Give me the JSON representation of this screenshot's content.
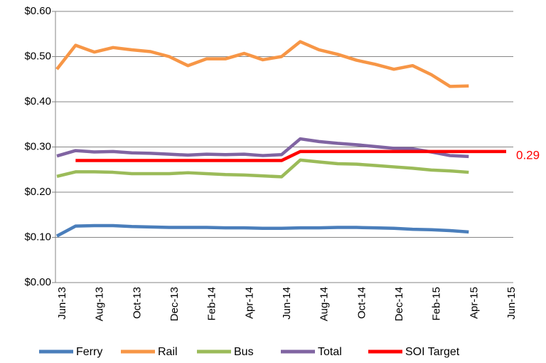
{
  "chart_data": {
    "type": "line",
    "categories": [
      "Jun-13",
      null,
      "Aug-13",
      null,
      "Oct-13",
      null,
      "Dec-13",
      null,
      "Feb-14",
      null,
      "Apr-14",
      null,
      "Jun-14",
      null,
      "Aug-14",
      null,
      "Oct-14",
      null,
      "Dec-14",
      null,
      "Feb-15",
      null,
      "Apr-15",
      null,
      "Jun-15"
    ],
    "series": [
      {
        "name": "Ferry",
        "color": "#4a7ebb",
        "values": [
          0.103,
          0.125,
          0.126,
          0.126,
          0.124,
          0.123,
          0.122,
          0.122,
          0.122,
          0.121,
          0.121,
          0.12,
          0.12,
          0.121,
          0.121,
          0.122,
          0.122,
          0.121,
          0.12,
          0.118,
          0.117,
          0.115,
          0.112,
          null,
          null
        ]
      },
      {
        "name": "Rail",
        "color": "#f79646",
        "values": [
          0.472,
          0.525,
          0.51,
          0.52,
          0.515,
          0.511,
          0.5,
          0.48,
          0.495,
          0.495,
          0.507,
          0.493,
          0.5,
          0.533,
          0.515,
          0.505,
          0.492,
          0.483,
          0.472,
          0.48,
          0.46,
          0.434,
          0.435,
          null,
          null
        ]
      },
      {
        "name": "Bus",
        "color": "#9bbb59",
        "values": [
          0.235,
          0.245,
          0.245,
          0.244,
          0.241,
          0.241,
          0.241,
          0.243,
          0.241,
          0.239,
          0.238,
          0.236,
          0.234,
          0.271,
          0.267,
          0.263,
          0.262,
          0.259,
          0.256,
          0.253,
          0.249,
          0.247,
          0.244,
          null,
          null
        ]
      },
      {
        "name": "Total",
        "color": "#8064a2",
        "values": [
          0.28,
          0.292,
          0.289,
          0.29,
          0.287,
          0.286,
          0.284,
          0.282,
          0.284,
          0.283,
          0.284,
          0.281,
          0.283,
          0.318,
          0.312,
          0.308,
          0.305,
          0.301,
          0.297,
          0.296,
          0.289,
          0.281,
          0.279,
          null,
          null
        ]
      },
      {
        "name": "SOI Target",
        "color": "#ff0000",
        "values": [
          null,
          0.27,
          0.27,
          0.27,
          0.27,
          0.27,
          0.27,
          0.27,
          0.27,
          0.27,
          0.27,
          0.27,
          0.27,
          0.29,
          0.29,
          0.29,
          0.29,
          0.29,
          0.29,
          0.29,
          0.29,
          0.29,
          0.29,
          0.29,
          0.29
        ]
      }
    ],
    "annotations": [
      {
        "text": "0.29",
        "color": "#ff0000"
      }
    ],
    "ylim": [
      0,
      0.6
    ],
    "yticks": [
      {
        "value": 0,
        "label": "$0.00"
      },
      {
        "value": 0.1,
        "label": "$0.10"
      },
      {
        "value": 0.2,
        "label": "$0.20"
      },
      {
        "value": 0.3,
        "label": "$0.30"
      },
      {
        "value": 0.4,
        "label": "$0.40"
      },
      {
        "value": 0.5,
        "label": "$0.50"
      },
      {
        "value": 0.6,
        "label": "$0.60"
      }
    ],
    "grid": true,
    "legend": "bottom"
  }
}
